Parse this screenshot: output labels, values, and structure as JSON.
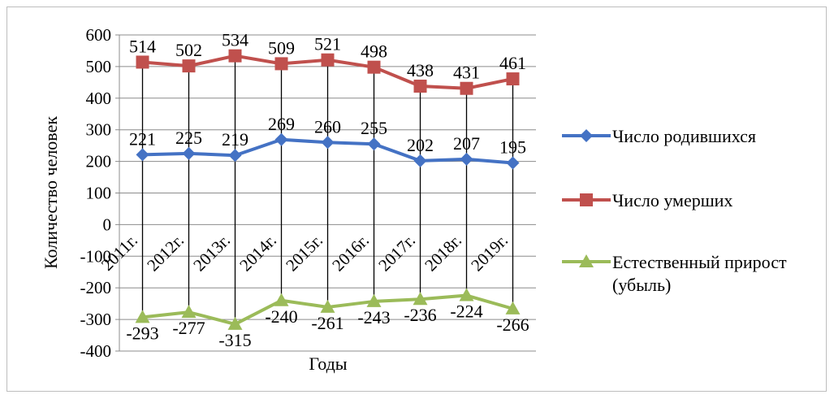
{
  "chart_data": {
    "type": "line",
    "categories": [
      "2011г.",
      "2012г.",
      "2013г.",
      "2014г.",
      "2015г.",
      "2016г.",
      "2017г.",
      "2018г.",
      "2019г."
    ],
    "series": [
      {
        "name": "Число родившихся",
        "values": [
          221,
          225,
          219,
          269,
          260,
          255,
          202,
          207,
          195
        ],
        "color": "#4472c4",
        "marker": "diamond"
      },
      {
        "name": "Число умерших",
        "values": [
          514,
          502,
          534,
          509,
          521,
          498,
          438,
          431,
          461
        ],
        "color": "#c0504d",
        "marker": "square"
      },
      {
        "name": "Естественный прирост (убыль)",
        "values": [
          -293,
          -277,
          -315,
          -240,
          -261,
          -243,
          -236,
          -224,
          -266
        ],
        "color": "#9bbb59",
        "marker": "triangle"
      }
    ],
    "yticks": [
      600,
      500,
      400,
      300,
      200,
      100,
      0,
      -100,
      -200,
      -300,
      -400
    ],
    "ylim": [
      -400,
      600
    ],
    "xlabel": "Годы",
    "ylabel": "Количество человек",
    "legend_position": "right",
    "grid": true,
    "drop_lines": true,
    "data_labels": true
  }
}
